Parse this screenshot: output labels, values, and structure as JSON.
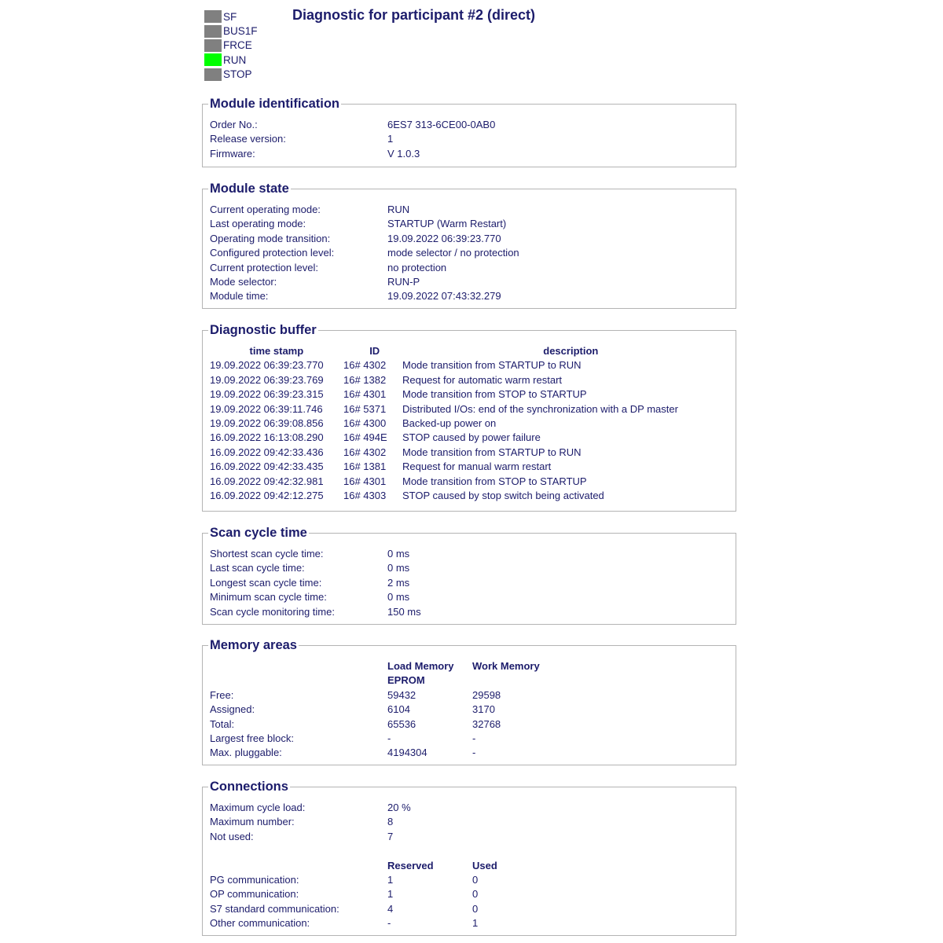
{
  "leds": [
    {
      "label": "SF",
      "color": "#808080"
    },
    {
      "label": "BUS1F",
      "color": "#808080"
    },
    {
      "label": "FRCE",
      "color": "#808080"
    },
    {
      "label": "RUN",
      "color": "#00ff00"
    },
    {
      "label": "STOP",
      "color": "#808080"
    }
  ],
  "title": "Diagnostic for participant #2 (direct)",
  "module_identification": {
    "legend": "Module identification",
    "rows": [
      {
        "label": "Order No.:",
        "value": "6ES7 313-6CE00-0AB0"
      },
      {
        "label": "Release version:",
        "value": "1"
      },
      {
        "label": "Firmware:",
        "value": "V 1.0.3"
      }
    ]
  },
  "module_state": {
    "legend": "Module state",
    "rows": [
      {
        "label": "Current operating mode:",
        "value": "RUN"
      },
      {
        "label": "Last operating mode:",
        "value": "STARTUP (Warm Restart)"
      },
      {
        "label": "Operating mode transition:",
        "value": "19.09.2022 06:39:23.770"
      },
      {
        "label": "Configured protection level:",
        "value": "mode selector / no protection"
      },
      {
        "label": "Current protection level:",
        "value": "no protection"
      },
      {
        "label": "Mode selector:",
        "value": "RUN-P"
      },
      {
        "label": "Module time:",
        "value": "19.09.2022 07:43:32.279"
      }
    ]
  },
  "diagnostic_buffer": {
    "legend": "Diagnostic buffer",
    "headers": [
      "time stamp",
      "ID",
      "description"
    ],
    "rows": [
      [
        "19.09.2022 06:39:23.770",
        "16# 4302",
        "Mode transition from STARTUP to RUN"
      ],
      [
        "19.09.2022 06:39:23.769",
        "16# 1382",
        "Request for automatic warm restart"
      ],
      [
        "19.09.2022 06:39:23.315",
        "16# 4301",
        "Mode transition from STOP to STARTUP"
      ],
      [
        "19.09.2022 06:39:11.746",
        "16# 5371",
        "Distributed I/Os: end of the synchronization with a DP master"
      ],
      [
        "19.09.2022 06:39:08.856",
        "16# 4300",
        "Backed-up power on"
      ],
      [
        "16.09.2022 16:13:08.290",
        "16# 494E",
        "STOP caused by power failure"
      ],
      [
        "16.09.2022 09:42:33.436",
        "16# 4302",
        "Mode transition from STARTUP to RUN"
      ],
      [
        "16.09.2022 09:42:33.435",
        "16# 1381",
        "Request for manual warm restart"
      ],
      [
        "16.09.2022 09:42:32.981",
        "16# 4301",
        "Mode transition from STOP to STARTUP"
      ],
      [
        "16.09.2022 09:42:12.275",
        "16# 4303",
        "STOP caused by stop switch being activated"
      ]
    ]
  },
  "scan_cycle": {
    "legend": "Scan cycle time",
    "rows": [
      {
        "label": "Shortest scan cycle time:",
        "value": "0 ms"
      },
      {
        "label": "Last scan cycle time:",
        "value": "0 ms"
      },
      {
        "label": "Longest scan cycle time:",
        "value": "2 ms"
      },
      {
        "label": "Minimum scan cycle time:",
        "value": "0 ms"
      },
      {
        "label": "Scan cycle monitoring time:",
        "value": "150 ms"
      }
    ]
  },
  "memory": {
    "legend": "Memory areas",
    "headers": [
      "Load Memory",
      "Work Memory"
    ],
    "subheader": "EPROM",
    "rows": [
      {
        "label": "Free:",
        "load": "59432",
        "work": "29598"
      },
      {
        "label": "Assigned:",
        "load": "6104",
        "work": "3170"
      },
      {
        "label": "Total:",
        "load": "65536",
        "work": "32768"
      },
      {
        "label": "Largest free block:",
        "load": "-",
        "work": "-"
      },
      {
        "label": "Max. pluggable:",
        "load": "4194304",
        "work": "-"
      }
    ]
  },
  "connections": {
    "legend": "Connections",
    "rows": [
      {
        "label": "Maximum cycle load:",
        "value": "20 %"
      },
      {
        "label": "Maximum number:",
        "value": "8"
      },
      {
        "label": "Not used:",
        "value": "7"
      }
    ],
    "headers": [
      "Reserved",
      "Used"
    ],
    "table": [
      {
        "label": "PG communication:",
        "reserved": "1",
        "used": "0"
      },
      {
        "label": "OP communication:",
        "reserved": "1",
        "used": "0"
      },
      {
        "label": "S7 standard communication:",
        "reserved": "4",
        "used": "0"
      },
      {
        "label": "Other communication:",
        "reserved": "-",
        "used": "1"
      }
    ]
  }
}
